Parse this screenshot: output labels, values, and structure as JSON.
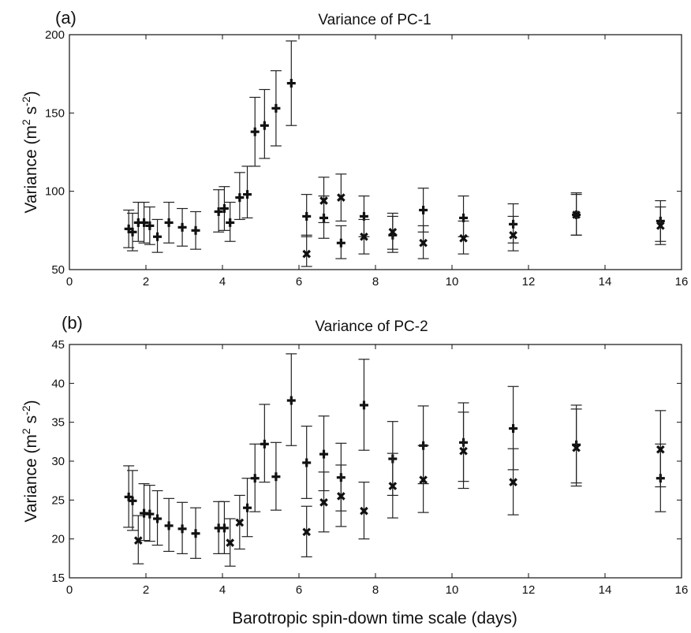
{
  "chart_data": [
    {
      "type": "scatter",
      "panel_label": "(a)",
      "title": "Variance of PC-1",
      "ylabel": "Variance",
      "ylabel_unit": "(m",
      "xlim": [
        0,
        16
      ],
      "ylim": [
        50,
        200
      ],
      "xticks": [
        0,
        2,
        4,
        6,
        8,
        10,
        12,
        14,
        16
      ],
      "yticks": [
        50,
        100,
        150,
        200
      ],
      "series": [
        {
          "marker": "plus",
          "points": [
            {
              "x": 1.55,
              "y": 76,
              "lo": 64,
              "hi": 88
            },
            {
              "x": 1.65,
              "y": 74,
              "lo": 62,
              "hi": 86
            },
            {
              "x": 1.8,
              "y": 80,
              "lo": 68,
              "hi": 93
            },
            {
              "x": 1.95,
              "y": 80,
              "lo": 67,
              "hi": 93
            },
            {
              "x": 2.1,
              "y": 78,
              "lo": 66,
              "hi": 90
            },
            {
              "x": 2.3,
              "y": 71,
              "lo": 61,
              "hi": 82
            },
            {
              "x": 2.6,
              "y": 80,
              "lo": 67,
              "hi": 93
            },
            {
              "x": 2.95,
              "y": 77,
              "lo": 65,
              "hi": 89
            },
            {
              "x": 3.3,
              "y": 75,
              "lo": 63,
              "hi": 87
            },
            {
              "x": 3.9,
              "y": 87,
              "lo": 74,
              "hi": 101
            },
            {
              "x": 4.05,
              "y": 89,
              "lo": 75,
              "hi": 103
            },
            {
              "x": 4.2,
              "y": 80,
              "lo": 68,
              "hi": 93
            },
            {
              "x": 4.45,
              "y": 96,
              "lo": 82,
              "hi": 112
            },
            {
              "x": 4.65,
              "y": 98,
              "lo": 83,
              "hi": 116
            },
            {
              "x": 4.85,
              "y": 138,
              "lo": 116,
              "hi": 160
            },
            {
              "x": 5.1,
              "y": 142,
              "lo": 121,
              "hi": 165
            },
            {
              "x": 5.4,
              "y": 153,
              "lo": 129,
              "hi": 177
            },
            {
              "x": 5.8,
              "y": 169,
              "lo": 142,
              "hi": 196
            },
            {
              "x": 6.2,
              "y": 84,
              "lo": 71,
              "hi": 98
            },
            {
              "x": 6.65,
              "y": 83,
              "lo": 70,
              "hi": 97
            },
            {
              "x": 7.1,
              "y": 67,
              "lo": 57,
              "hi": 78
            },
            {
              "x": 7.7,
              "y": 84,
              "lo": 71,
              "hi": 97
            },
            {
              "x": 8.45,
              "y": 72,
              "lo": 61,
              "hi": 84
            },
            {
              "x": 9.25,
              "y": 88,
              "lo": 74,
              "hi": 102
            },
            {
              "x": 10.3,
              "y": 83,
              "lo": 71,
              "hi": 97
            },
            {
              "x": 11.6,
              "y": 79,
              "lo": 67,
              "hi": 92
            },
            {
              "x": 13.25,
              "y": 85,
              "lo": 72,
              "hi": 99
            },
            {
              "x": 15.45,
              "y": 81,
              "lo": 68,
              "hi": 94
            }
          ]
        },
        {
          "marker": "cross",
          "points": [
            {
              "x": 6.2,
              "y": 60,
              "lo": 52,
              "hi": 72
            },
            {
              "x": 6.65,
              "y": 94,
              "lo": 80,
              "hi": 109
            },
            {
              "x": 7.1,
              "y": 96,
              "lo": 81,
              "hi": 111
            },
            {
              "x": 7.7,
              "y": 71,
              "lo": 60,
              "hi": 82
            },
            {
              "x": 8.45,
              "y": 74,
              "lo": 63,
              "hi": 86
            },
            {
              "x": 9.25,
              "y": 67,
              "lo": 57,
              "hi": 78
            },
            {
              "x": 10.3,
              "y": 70,
              "lo": 60,
              "hi": 81
            },
            {
              "x": 11.6,
              "y": 72,
              "lo": 62,
              "hi": 84
            },
            {
              "x": 13.25,
              "y": 85,
              "lo": 72,
              "hi": 98
            },
            {
              "x": 15.45,
              "y": 78,
              "lo": 66,
              "hi": 90
            }
          ]
        }
      ]
    },
    {
      "type": "scatter",
      "panel_label": "(b)",
      "title": "Variance of PC-2",
      "ylabel": "Variance",
      "ylabel_unit": "(m",
      "xlabel": "Barotropic spin-down time scale (days)",
      "xlim": [
        0,
        16
      ],
      "ylim": [
        15,
        45
      ],
      "xticks": [
        0,
        2,
        4,
        6,
        8,
        10,
        12,
        14,
        16
      ],
      "yticks": [
        15,
        20,
        25,
        30,
        35,
        40,
        45
      ],
      "series": [
        {
          "marker": "plus",
          "points": [
            {
              "x": 1.55,
              "y": 25.4,
              "lo": 21.5,
              "hi": 29.4
            },
            {
              "x": 1.65,
              "y": 24.9,
              "lo": 21.1,
              "hi": 28.8
            },
            {
              "x": 1.95,
              "y": 23.3,
              "lo": 19.8,
              "hi": 27.1
            },
            {
              "x": 2.1,
              "y": 23.2,
              "lo": 19.7,
              "hi": 26.9
            },
            {
              "x": 2.3,
              "y": 22.6,
              "lo": 19.2,
              "hi": 26.2
            },
            {
              "x": 2.6,
              "y": 21.7,
              "lo": 18.4,
              "hi": 25.2
            },
            {
              "x": 2.95,
              "y": 21.3,
              "lo": 18.1,
              "hi": 24.7
            },
            {
              "x": 3.3,
              "y": 20.7,
              "lo": 17.5,
              "hi": 24.0
            },
            {
              "x": 3.9,
              "y": 21.4,
              "lo": 18.1,
              "hi": 24.8
            },
            {
              "x": 4.05,
              "y": 21.4,
              "lo": 18.1,
              "hi": 24.8
            },
            {
              "x": 4.65,
              "y": 24.0,
              "lo": 20.3,
              "hi": 27.8
            },
            {
              "x": 4.85,
              "y": 27.8,
              "lo": 23.5,
              "hi": 32.2
            },
            {
              "x": 5.1,
              "y": 32.2,
              "lo": 27.3,
              "hi": 37.3
            },
            {
              "x": 5.4,
              "y": 28.0,
              "lo": 23.7,
              "hi": 32.4
            },
            {
              "x": 5.8,
              "y": 37.8,
              "lo": 32.0,
              "hi": 43.8
            },
            {
              "x": 6.2,
              "y": 29.8,
              "lo": 25.2,
              "hi": 34.5
            },
            {
              "x": 6.65,
              "y": 30.9,
              "lo": 26.2,
              "hi": 35.8
            },
            {
              "x": 7.1,
              "y": 27.9,
              "lo": 23.6,
              "hi": 32.3
            },
            {
              "x": 7.7,
              "y": 37.2,
              "lo": 31.4,
              "hi": 43.1
            },
            {
              "x": 8.45,
              "y": 30.3,
              "lo": 25.6,
              "hi": 35.1
            },
            {
              "x": 9.25,
              "y": 32.0,
              "lo": 27.1,
              "hi": 37.1
            },
            {
              "x": 10.3,
              "y": 32.4,
              "lo": 27.4,
              "hi": 37.5
            },
            {
              "x": 11.6,
              "y": 34.2,
              "lo": 28.9,
              "hi": 39.6
            },
            {
              "x": 13.25,
              "y": 32.1,
              "lo": 27.2,
              "hi": 37.2
            },
            {
              "x": 15.45,
              "y": 27.8,
              "lo": 23.5,
              "hi": 32.2
            }
          ]
        },
        {
          "marker": "cross",
          "points": [
            {
              "x": 1.8,
              "y": 19.8,
              "lo": 16.8,
              "hi": 23.0
            },
            {
              "x": 4.2,
              "y": 19.5,
              "lo": 16.5,
              "hi": 22.6
            },
            {
              "x": 4.45,
              "y": 22.1,
              "lo": 18.7,
              "hi": 25.6
            },
            {
              "x": 6.2,
              "y": 20.9,
              "lo": 17.7,
              "hi": 24.2
            },
            {
              "x": 6.65,
              "y": 24.7,
              "lo": 20.9,
              "hi": 28.6
            },
            {
              "x": 7.1,
              "y": 25.5,
              "lo": 21.6,
              "hi": 29.5
            },
            {
              "x": 7.7,
              "y": 23.6,
              "lo": 20.0,
              "hi": 27.3
            },
            {
              "x": 8.45,
              "y": 26.8,
              "lo": 22.7,
              "hi": 31.0
            },
            {
              "x": 9.25,
              "y": 27.6,
              "lo": 23.4,
              "hi": 32.0
            },
            {
              "x": 10.3,
              "y": 31.3,
              "lo": 26.5,
              "hi": 36.3
            },
            {
              "x": 11.6,
              "y": 27.3,
              "lo": 23.1,
              "hi": 31.6
            },
            {
              "x": 13.25,
              "y": 31.7,
              "lo": 26.8,
              "hi": 36.7
            },
            {
              "x": 15.45,
              "y": 31.5,
              "lo": 26.7,
              "hi": 36.5
            }
          ]
        }
      ]
    }
  ]
}
